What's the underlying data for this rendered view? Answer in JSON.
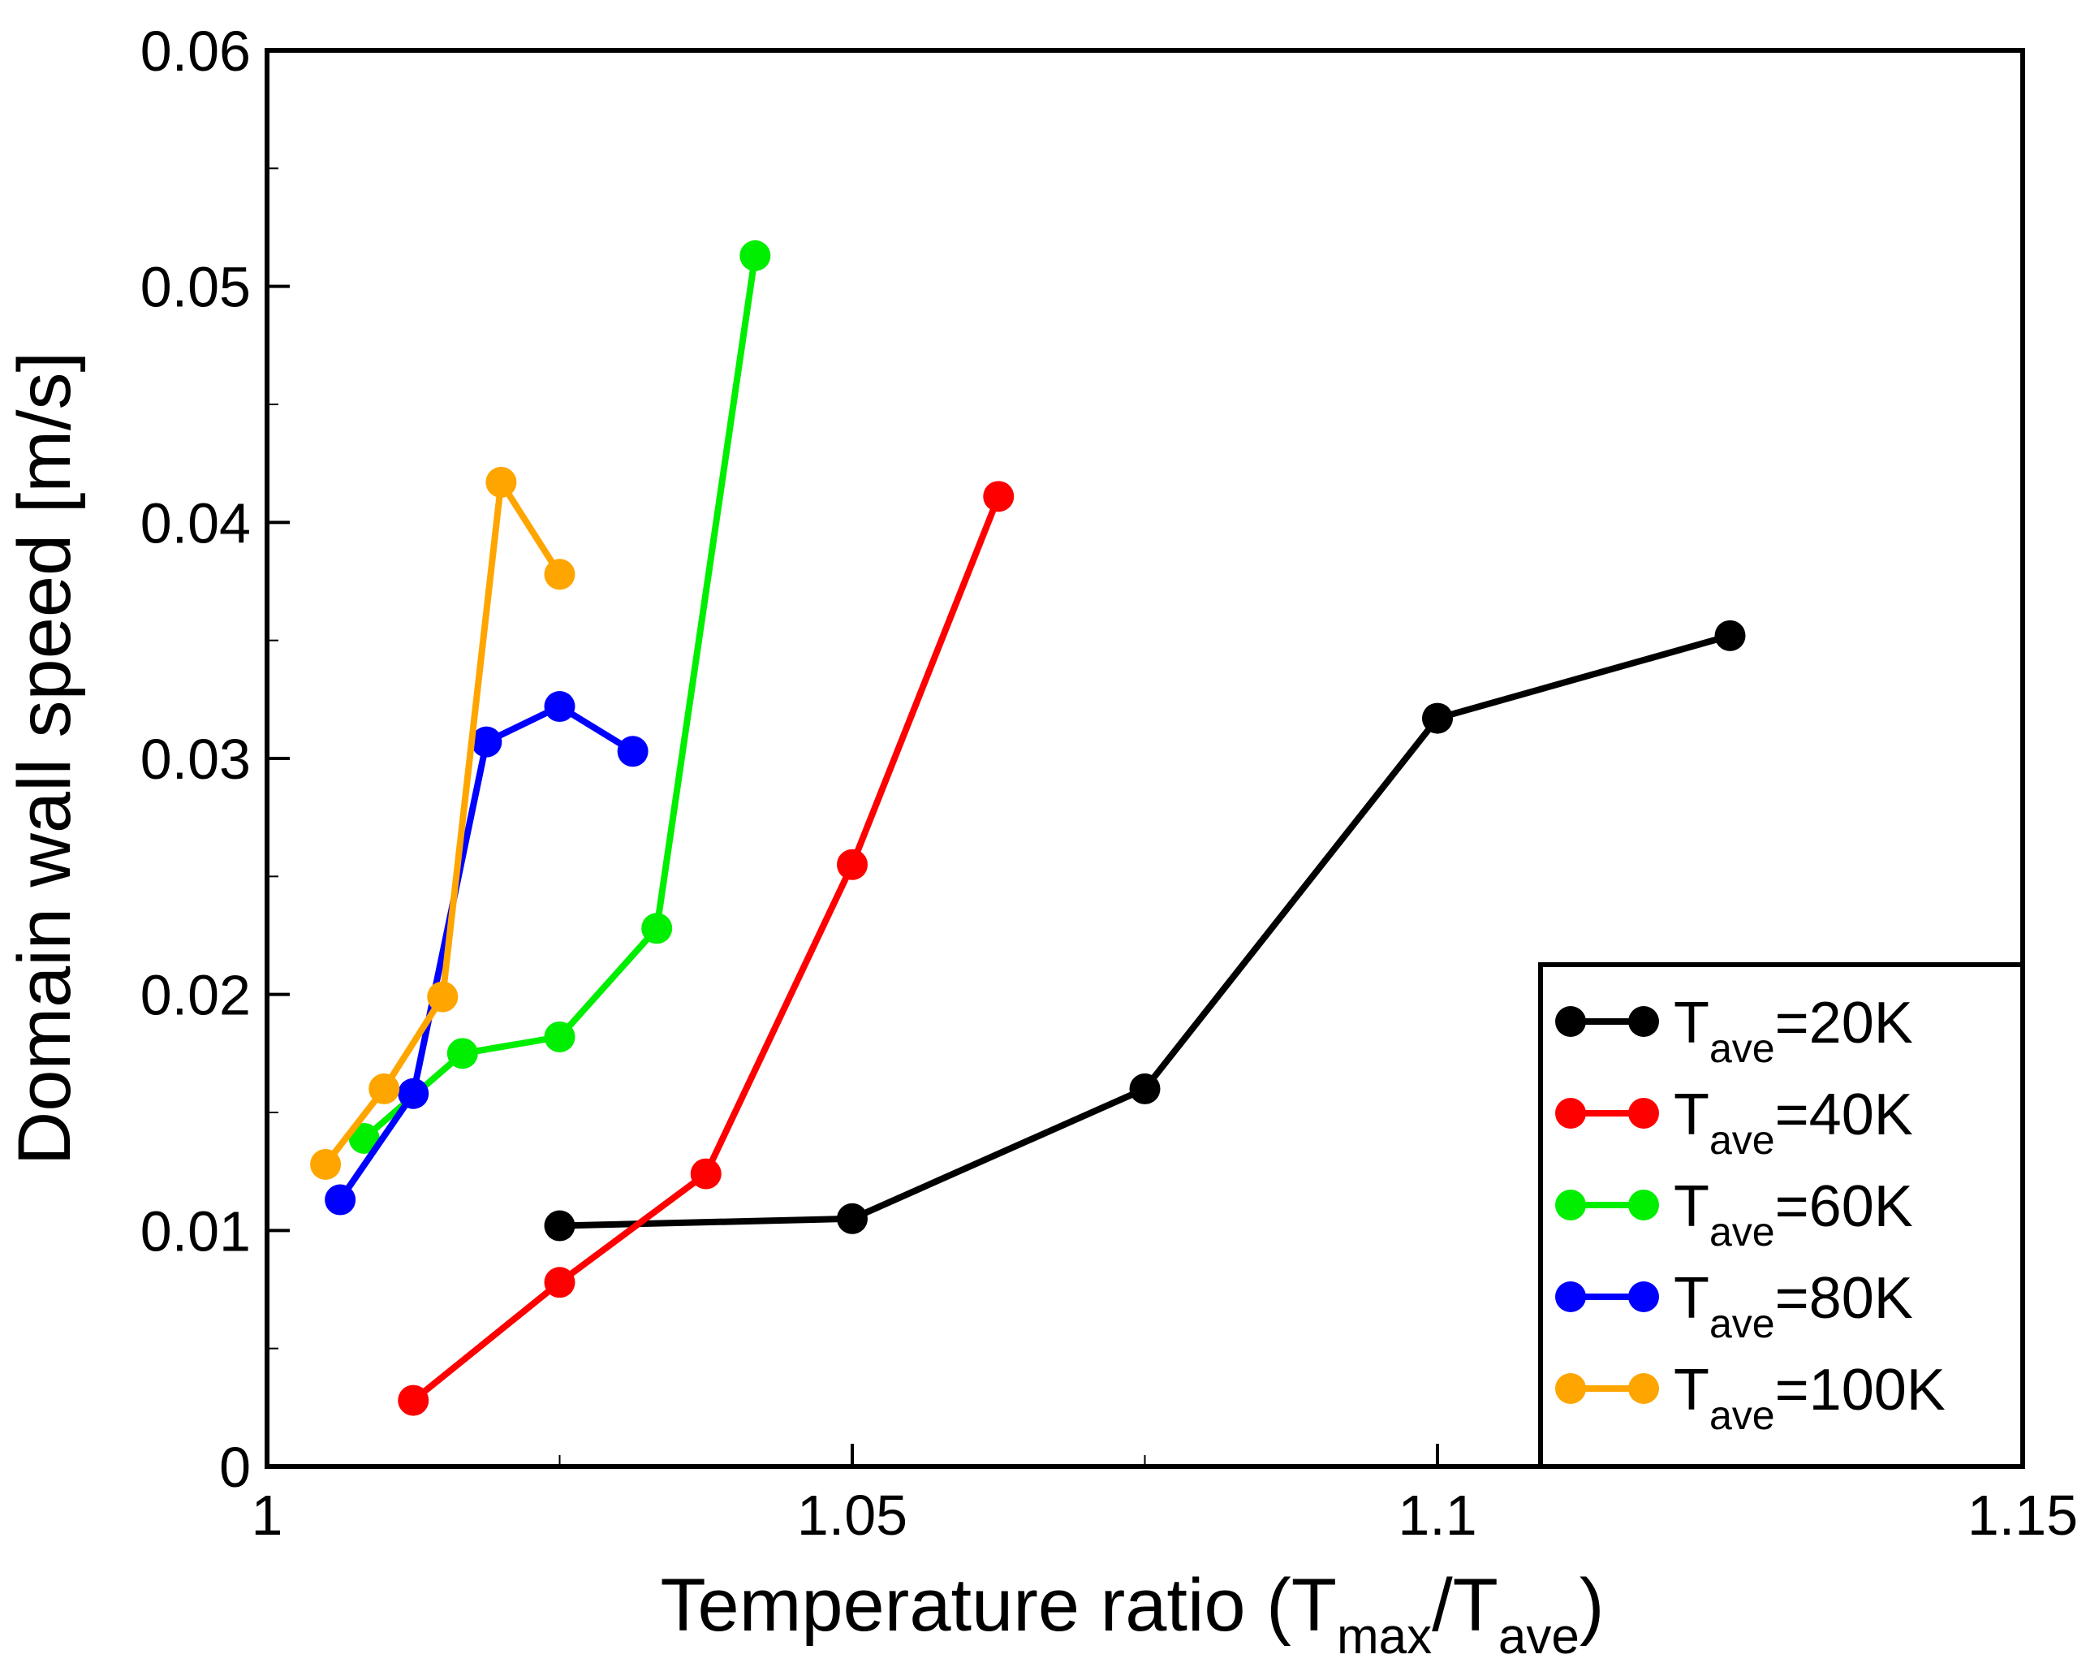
{
  "chart_data": {
    "type": "line",
    "title": "",
    "xlabel": {
      "main": "Temperature ratio (T",
      "sub1": "max",
      "mid": "/T",
      "sub2": "ave",
      "end": ")"
    },
    "ylabel": "Domain wall speed [m/s]",
    "xlim": [
      1.0,
      1.15
    ],
    "ylim": [
      0.0,
      0.06
    ],
    "x_ticks": [
      1.0,
      1.05,
      1.1,
      1.15
    ],
    "x_tick_labels": [
      "1",
      "1.05",
      "1.1",
      "1.15"
    ],
    "y_ticks": [
      0.0,
      0.01,
      0.02,
      0.03,
      0.04,
      0.05,
      0.06
    ],
    "y_tick_labels": [
      "0",
      "0.01",
      "0.02",
      "0.03",
      "0.04",
      "0.05",
      "0.06"
    ],
    "grid": false,
    "legend_position": "bottom-right",
    "series": [
      {
        "name": "T_ave=20K",
        "label_main": "T",
        "label_sub": "ave",
        "label_suffix": "=20K",
        "color": "#000000",
        "x": [
          1.025,
          1.05,
          1.075,
          1.1,
          1.125
        ],
        "y": [
          0.0102,
          0.0105,
          0.016,
          0.0317,
          0.0352
        ]
      },
      {
        "name": "T_ave=40K",
        "label_main": "T",
        "label_sub": "ave",
        "label_suffix": "=40K",
        "color": "#ff0000",
        "x": [
          1.0125,
          1.025,
          1.0375,
          1.05,
          1.0625
        ],
        "y": [
          0.0028,
          0.0078,
          0.0124,
          0.0255,
          0.0411
        ]
      },
      {
        "name": "T_ave=60K",
        "label_main": "T",
        "label_sub": "ave",
        "label_suffix": "=60K",
        "color": "#00ee00",
        "x": [
          1.0083,
          1.0167,
          1.025,
          1.0333,
          1.0417
        ],
        "y": [
          0.0139,
          0.0175,
          0.0182,
          0.0228,
          0.0513
        ]
      },
      {
        "name": "T_ave=80K",
        "label_main": "T",
        "label_sub": "ave",
        "label_suffix": "=80K",
        "color": "#0000ff",
        "x": [
          1.00625,
          1.0125,
          1.01875,
          1.025,
          1.03125
        ],
        "y": [
          0.0113,
          0.0158,
          0.0307,
          0.0322,
          0.0303
        ]
      },
      {
        "name": "T_ave=100K",
        "label_main": "T",
        "label_sub": "ave",
        "label_suffix": "=100K",
        "color": "#ffa500",
        "x": [
          1.005,
          1.01,
          1.015,
          1.02,
          1.025
        ],
        "y": [
          0.0128,
          0.016,
          0.0199,
          0.0417,
          0.0378
        ]
      }
    ]
  }
}
